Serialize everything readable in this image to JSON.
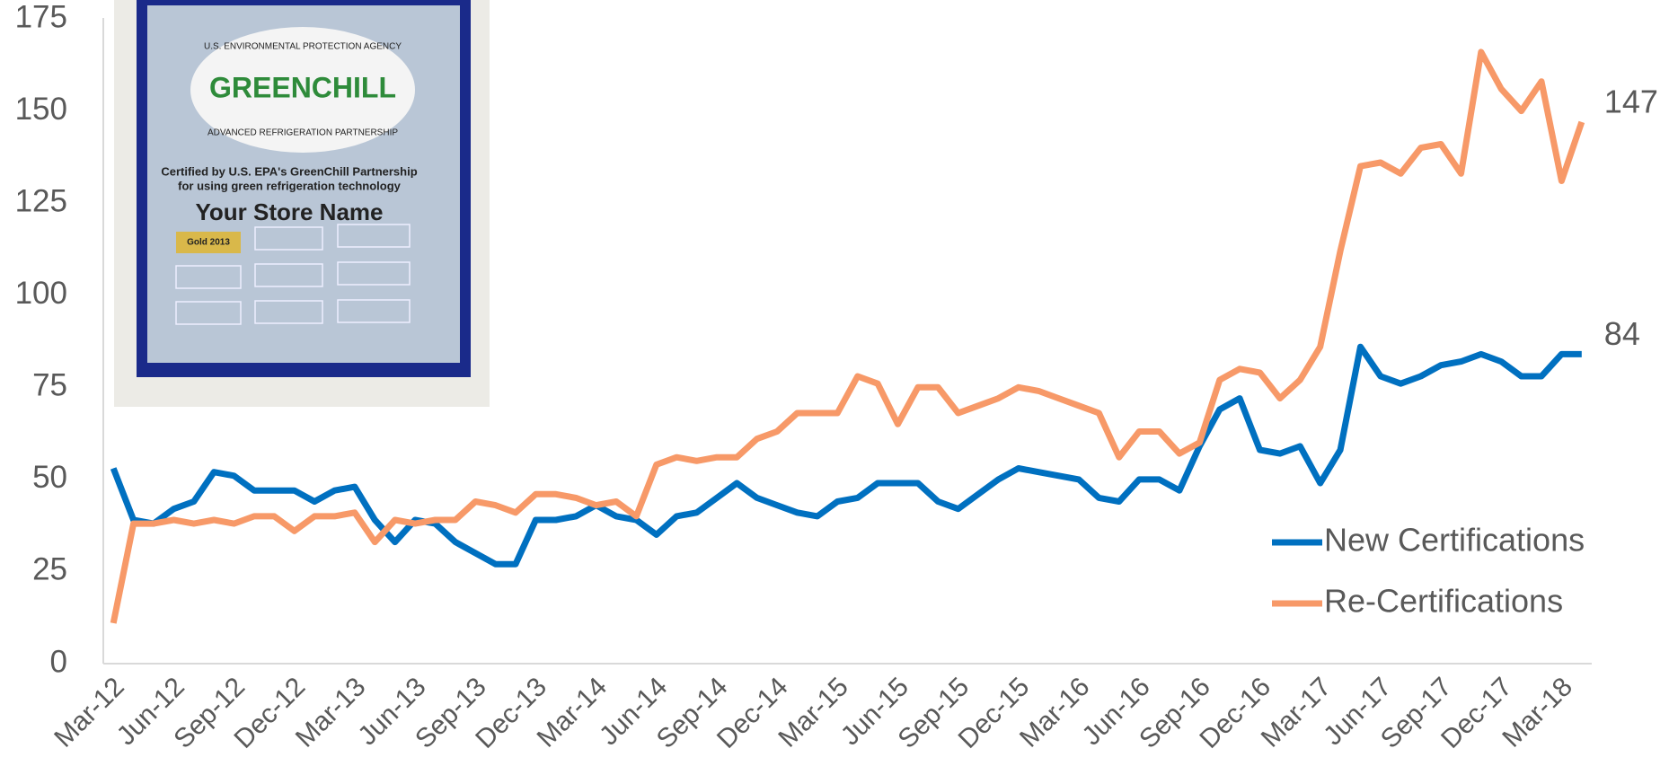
{
  "chart_data": {
    "type": "line",
    "categories": [
      "Mar-12",
      null,
      null,
      "Jun-12",
      null,
      null,
      "Sep-12",
      null,
      null,
      "Dec-12",
      null,
      null,
      "Mar-13",
      null,
      null,
      "Jun-13",
      null,
      null,
      "Sep-13",
      null,
      null,
      "Dec-13",
      null,
      null,
      "Mar-14",
      null,
      null,
      "Jun-14",
      null,
      null,
      "Sep-14",
      null,
      null,
      "Dec-14",
      null,
      null,
      "Mar-15",
      null,
      null,
      "Jun-15",
      null,
      null,
      "Sep-15",
      null,
      null,
      "Dec-15",
      null,
      null,
      "Mar-16",
      null,
      null,
      "Jun-16",
      null,
      null,
      "Sep-16",
      null,
      null,
      "Dec-16",
      null,
      null,
      "Mar-17",
      null,
      null,
      "Jun-17",
      null,
      null,
      "Sep-17",
      null,
      null,
      "Dec-17",
      null,
      null,
      "Mar-18",
      null
    ],
    "series": [
      {
        "name": "New Certifications",
        "color": "#0070c0",
        "end_label": true,
        "values": [
          53,
          39,
          38,
          42,
          44,
          52,
          51,
          47,
          47,
          47,
          44,
          47,
          48,
          39,
          33,
          39,
          38,
          33,
          30,
          27,
          27,
          39,
          39,
          40,
          43,
          40,
          39,
          35,
          40,
          41,
          45,
          49,
          45,
          43,
          41,
          40,
          44,
          45,
          49,
          49,
          49,
          44,
          42,
          46,
          50,
          53,
          52,
          51,
          50,
          45,
          44,
          50,
          50,
          47,
          59,
          69,
          72,
          58,
          57,
          59,
          49,
          58,
          86,
          78,
          76,
          78,
          81,
          82,
          84,
          82,
          78,
          78,
          84,
          84
        ]
      },
      {
        "name": "Re-Certifications",
        "color": "#f79968",
        "end_label": true,
        "values": [
          11,
          38,
          38,
          39,
          38,
          39,
          38,
          40,
          40,
          36,
          40,
          40,
          41,
          33,
          39,
          38,
          39,
          39,
          44,
          43,
          41,
          46,
          46,
          45,
          43,
          44,
          40,
          54,
          56,
          55,
          56,
          56,
          61,
          63,
          68,
          68,
          68,
          78,
          76,
          65,
          75,
          75,
          68,
          70,
          72,
          75,
          74,
          72,
          70,
          68,
          56,
          63,
          63,
          57,
          60,
          77,
          80,
          79,
          72,
          77,
          86,
          112,
          135,
          136,
          133,
          140,
          141,
          133,
          166,
          156,
          150,
          158,
          131,
          147
        ]
      }
    ],
    "ylim": [
      0,
      175
    ],
    "yticks": [
      0,
      25,
      50,
      75,
      100,
      125,
      150,
      175
    ],
    "grid": false,
    "legend": "right"
  },
  "image": {
    "agency": "U.S. ENVIRONMENTAL PROTECTION AGENCY",
    "logo": "GREENCHILL",
    "partnership": "ADVANCED REFRIGERATION PARTNERSHIP",
    "certified": "Certified by U.S. EPA's GreenChill Partnership",
    "usage": "for using green refrigeration technology",
    "store": "Your Store Name",
    "badge": "Gold 2013"
  }
}
